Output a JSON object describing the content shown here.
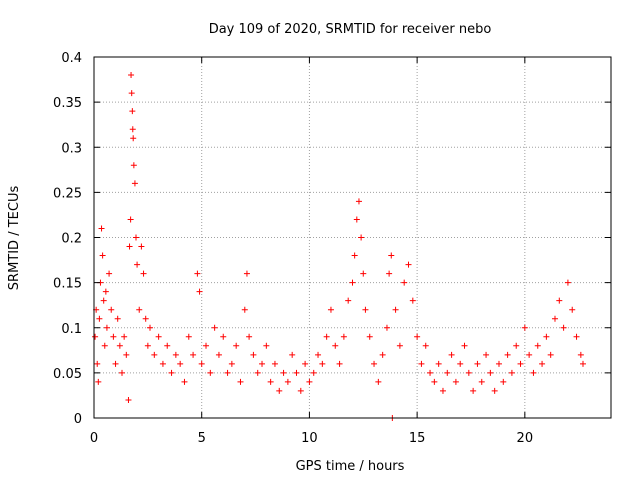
{
  "chart_data": {
    "type": "scatter",
    "title": "Day 109 of 2020, SRMTID for receiver nebo",
    "xlabel": "GPS time / hours",
    "ylabel": "SRMTID / TECUs",
    "xlim": [
      0,
      24
    ],
    "ylim": [
      0,
      0.4
    ],
    "x_ticks": [
      0,
      5,
      10,
      15,
      20
    ],
    "x_tick_labels": [
      "0",
      "5",
      "10",
      "15",
      "20"
    ],
    "y_ticks": [
      0,
      0.05,
      0.1,
      0.15,
      0.2,
      0.25,
      0.3,
      0.35,
      0.4
    ],
    "y_tick_labels": [
      "0",
      "0.05",
      "0.1",
      "0.15",
      "0.2",
      "0.25",
      "0.3",
      "0.35",
      "0.4"
    ],
    "grid": true,
    "marker": "+",
    "color": "#ff0000",
    "series": [
      {
        "name": "SRMTID",
        "points": [
          [
            0.05,
            0.09
          ],
          [
            0.1,
            0.12
          ],
          [
            0.15,
            0.06
          ],
          [
            0.2,
            0.04
          ],
          [
            0.25,
            0.11
          ],
          [
            0.3,
            0.15
          ],
          [
            0.35,
            0.21
          ],
          [
            0.4,
            0.18
          ],
          [
            0.45,
            0.13
          ],
          [
            0.5,
            0.08
          ],
          [
            0.55,
            0.14
          ],
          [
            0.6,
            0.1
          ],
          [
            0.7,
            0.16
          ],
          [
            0.8,
            0.12
          ],
          [
            0.9,
            0.09
          ],
          [
            1.0,
            0.06
          ],
          [
            1.1,
            0.11
          ],
          [
            1.2,
            0.08
          ],
          [
            1.3,
            0.05
          ],
          [
            1.4,
            0.09
          ],
          [
            1.5,
            0.07
          ],
          [
            1.6,
            0.02
          ],
          [
            1.65,
            0.19
          ],
          [
            1.7,
            0.22
          ],
          [
            1.72,
            0.38
          ],
          [
            1.75,
            0.36
          ],
          [
            1.78,
            0.34
          ],
          [
            1.8,
            0.32
          ],
          [
            1.82,
            0.31
          ],
          [
            1.85,
            0.28
          ],
          [
            1.9,
            0.26
          ],
          [
            1.95,
            0.2
          ],
          [
            2.0,
            0.17
          ],
          [
            2.1,
            0.12
          ],
          [
            2.2,
            0.19
          ],
          [
            2.3,
            0.16
          ],
          [
            2.4,
            0.11
          ],
          [
            2.5,
            0.08
          ],
          [
            2.6,
            0.1
          ],
          [
            2.8,
            0.07
          ],
          [
            3.0,
            0.09
          ],
          [
            3.2,
            0.06
          ],
          [
            3.4,
            0.08
          ],
          [
            3.6,
            0.05
          ],
          [
            3.8,
            0.07
          ],
          [
            4.0,
            0.06
          ],
          [
            4.2,
            0.04
          ],
          [
            4.4,
            0.09
          ],
          [
            4.6,
            0.07
          ],
          [
            4.8,
            0.16
          ],
          [
            4.9,
            0.14
          ],
          [
            5.0,
            0.06
          ],
          [
            5.2,
            0.08
          ],
          [
            5.4,
            0.05
          ],
          [
            5.6,
            0.1
          ],
          [
            5.8,
            0.07
          ],
          [
            6.0,
            0.09
          ],
          [
            6.2,
            0.05
          ],
          [
            6.4,
            0.06
          ],
          [
            6.6,
            0.08
          ],
          [
            6.8,
            0.04
          ],
          [
            7.0,
            0.12
          ],
          [
            7.1,
            0.16
          ],
          [
            7.2,
            0.09
          ],
          [
            7.4,
            0.07
          ],
          [
            7.6,
            0.05
          ],
          [
            7.8,
            0.06
          ],
          [
            8.0,
            0.08
          ],
          [
            8.2,
            0.04
          ],
          [
            8.4,
            0.06
          ],
          [
            8.6,
            0.03
          ],
          [
            8.8,
            0.05
          ],
          [
            9.0,
            0.04
          ],
          [
            9.2,
            0.07
          ],
          [
            9.4,
            0.05
          ],
          [
            9.6,
            0.03
          ],
          [
            9.8,
            0.06
          ],
          [
            10.0,
            0.04
          ],
          [
            10.2,
            0.05
          ],
          [
            10.4,
            0.07
          ],
          [
            10.6,
            0.06
          ],
          [
            10.8,
            0.09
          ],
          [
            11.0,
            0.12
          ],
          [
            11.2,
            0.08
          ],
          [
            11.4,
            0.06
          ],
          [
            11.6,
            0.09
          ],
          [
            11.8,
            0.13
          ],
          [
            12.0,
            0.15
          ],
          [
            12.1,
            0.18
          ],
          [
            12.2,
            0.22
          ],
          [
            12.3,
            0.24
          ],
          [
            12.4,
            0.2
          ],
          [
            12.5,
            0.16
          ],
          [
            12.6,
            0.12
          ],
          [
            12.8,
            0.09
          ],
          [
            13.0,
            0.06
          ],
          [
            13.2,
            0.04
          ],
          [
            13.4,
            0.07
          ],
          [
            13.6,
            0.1
          ],
          [
            13.7,
            0.16
          ],
          [
            13.8,
            0.18
          ],
          [
            13.85,
            0.0
          ],
          [
            14.0,
            0.12
          ],
          [
            14.2,
            0.08
          ],
          [
            14.4,
            0.15
          ],
          [
            14.6,
            0.17
          ],
          [
            14.8,
            0.13
          ],
          [
            15.0,
            0.09
          ],
          [
            15.2,
            0.06
          ],
          [
            15.4,
            0.08
          ],
          [
            15.6,
            0.05
          ],
          [
            15.8,
            0.04
          ],
          [
            16.0,
            0.06
          ],
          [
            16.2,
            0.03
          ],
          [
            16.4,
            0.05
          ],
          [
            16.6,
            0.07
          ],
          [
            16.8,
            0.04
          ],
          [
            17.0,
            0.06
          ],
          [
            17.2,
            0.08
          ],
          [
            17.4,
            0.05
          ],
          [
            17.6,
            0.03
          ],
          [
            17.8,
            0.06
          ],
          [
            18.0,
            0.04
          ],
          [
            18.2,
            0.07
          ],
          [
            18.4,
            0.05
          ],
          [
            18.6,
            0.03
          ],
          [
            18.8,
            0.06
          ],
          [
            19.0,
            0.04
          ],
          [
            19.2,
            0.07
          ],
          [
            19.4,
            0.05
          ],
          [
            19.6,
            0.08
          ],
          [
            19.8,
            0.06
          ],
          [
            20.0,
            0.1
          ],
          [
            20.2,
            0.07
          ],
          [
            20.4,
            0.05
          ],
          [
            20.6,
            0.08
          ],
          [
            20.8,
            0.06
          ],
          [
            21.0,
            0.09
          ],
          [
            21.2,
            0.07
          ],
          [
            21.4,
            0.11
          ],
          [
            21.6,
            0.13
          ],
          [
            21.8,
            0.1
          ],
          [
            22.0,
            0.15
          ],
          [
            22.2,
            0.12
          ],
          [
            22.4,
            0.09
          ],
          [
            22.6,
            0.07
          ],
          [
            22.7,
            0.06
          ]
        ]
      }
    ]
  }
}
